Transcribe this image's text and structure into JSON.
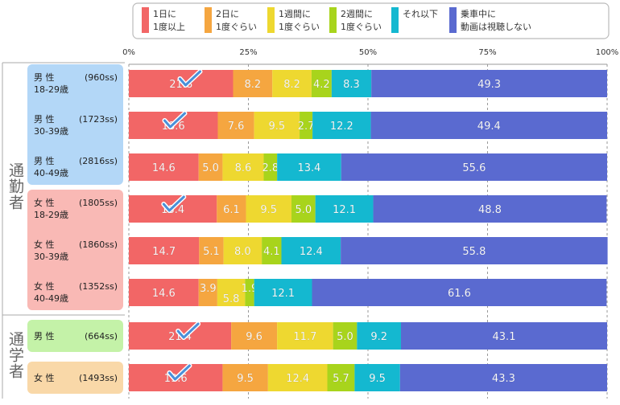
{
  "chart_data": {
    "type": "bar",
    "orientation": "horizontal",
    "stacked": true,
    "xlim": [
      0,
      100
    ],
    "x_ticks": [
      "0%",
      "25%",
      "50%",
      "75%",
      "100%"
    ],
    "grid": "vertical dashed",
    "legend_placement": "top",
    "series": [
      {
        "name": "1日に\n1度以上",
        "color": "#f26666",
        "values": [
          21.8,
          18.6,
          14.6,
          18.4,
          14.7,
          14.6,
          21.4,
          19.6
        ]
      },
      {
        "name": "2日に\n1度ぐらい",
        "color": "#f5a640",
        "values": [
          8.2,
          7.6,
          5.0,
          6.1,
          5.1,
          3.9,
          9.6,
          9.5
        ]
      },
      {
        "name": "1週間に\n1度ぐらい",
        "color": "#eed830",
        "values": [
          8.2,
          9.5,
          8.6,
          9.5,
          8.0,
          5.8,
          11.7,
          12.4
        ]
      },
      {
        "name": "2週間に\n1度ぐらい",
        "color": "#a8d41c",
        "values": [
          4.2,
          2.7,
          2.8,
          5.0,
          4.1,
          1.9,
          5.0,
          5.7
        ]
      },
      {
        "name": "それ以下",
        "color": "#14b8d0",
        "values": [
          8.3,
          12.2,
          13.4,
          12.1,
          12.4,
          12.1,
          9.2,
          9.5
        ]
      },
      {
        "name": "乗車中に\n動画は視聴しない",
        "color": "#5a6ad0",
        "values": [
          49.3,
          49.4,
          55.6,
          48.8,
          55.8,
          61.6,
          43.1,
          43.3
        ]
      }
    ],
    "groups": [
      {
        "label": "通勤者",
        "rows": [
          0,
          1,
          2,
          3,
          4,
          5
        ]
      },
      {
        "label": "通学者",
        "rows": [
          6,
          7
        ]
      }
    ],
    "categories": [
      {
        "line1": "男 性",
        "line2": "18-29歳",
        "n": "(960ss)",
        "color": "#b3d7f7",
        "check": true
      },
      {
        "line1": "男 性",
        "line2": "30-39歳",
        "n": "(1723ss)",
        "color": "#b3d7f7",
        "check": true
      },
      {
        "line1": "男 性",
        "line2": "40-49歳",
        "n": "(2816ss)",
        "color": "#b3d7f7",
        "check": false
      },
      {
        "line1": "女 性",
        "line2": "18-29歳",
        "n": "(1805ss)",
        "color": "#f9b9b5",
        "check": true
      },
      {
        "line1": "女 性",
        "line2": "30-39歳",
        "n": "(1860ss)",
        "color": "#f9b9b5",
        "check": false
      },
      {
        "line1": "女 性",
        "line2": "40-49歳",
        "n": "(1352ss)",
        "color": "#f9b9b5",
        "check": false
      },
      {
        "line1": "男 性",
        "line2": "",
        "n": "(664ss)",
        "color": "#c4f2a8",
        "check": true
      },
      {
        "line1": "女 性",
        "line2": "",
        "n": "(1493ss)",
        "color": "#f9d8a8",
        "check": true
      }
    ]
  }
}
